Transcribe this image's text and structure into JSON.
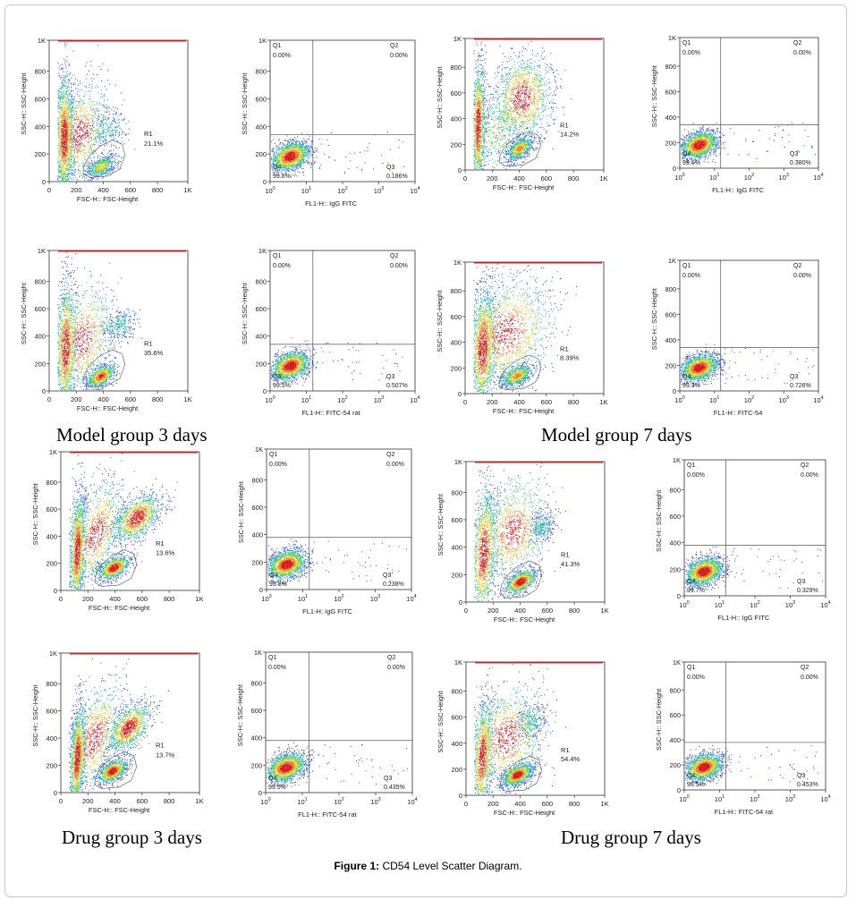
{
  "figure": {
    "caption_label": "Figure 1:",
    "caption_text": " CD54 Level Scatter Diagram.",
    "group_labels": [
      "Model group 3 days",
      "Model group 7 days",
      "Drug group 3 days",
      "Drug group 7 days"
    ]
  },
  "chart_data": [
    {
      "type": "scatter",
      "panel": "model-3d-fsc-ssc",
      "xlabel": "FSC-H:: FSC-Height",
      "ylabel": "SSC-H:: SSC-Height",
      "xticks": [
        "0",
        "200",
        "400",
        "600",
        "800",
        "1K"
      ],
      "yticks": [
        "0",
        "200",
        "400",
        "600",
        "800",
        "1K"
      ],
      "xlim": [
        0,
        1024
      ],
      "ylim": [
        0,
        1024
      ],
      "gate": {
        "name": "R1",
        "percent": "21.1%"
      }
    },
    {
      "type": "scatter",
      "panel": "model-3d-igg",
      "xscale": "log",
      "xlabel": "FL1-H:: IgG FITC",
      "ylabel": "SSC-H:: SSC-Height",
      "xticks": [
        "10",
        "10",
        "10",
        "10",
        "10"
      ],
      "xtick_exponents": [
        "0",
        "1",
        "2",
        "3",
        "4"
      ],
      "yticks": [
        "0",
        "200",
        "400",
        "600",
        "800",
        "1K"
      ],
      "quadrants": [
        {
          "name": "Q1",
          "percent": "0.00%"
        },
        {
          "name": "Q2",
          "percent": "0.00%"
        },
        {
          "name": "Q3",
          "percent": "0.186%"
        },
        {
          "name": "Q4",
          "percent": "99.8%"
        }
      ]
    },
    {
      "type": "scatter",
      "panel": "model-7d-fsc-ssc",
      "xlabel": "FSC-H:: FSC-Height",
      "ylabel": "SSC-H:: SSC-Height",
      "xticks": [
        "0",
        "200",
        "400",
        "600",
        "800",
        "1K"
      ],
      "yticks": [
        "0",
        "200",
        "400",
        "600",
        "800",
        "1K"
      ],
      "xlim": [
        0,
        1024
      ],
      "ylim": [
        0,
        1024
      ],
      "gate": {
        "name": "R1",
        "percent": "14.2%"
      }
    },
    {
      "type": "scatter",
      "panel": "model-7d-igg",
      "xscale": "log",
      "xlabel": "FL1-H:: IgG FITC",
      "ylabel": "SSC-H:: SSC-Height",
      "xticks": [
        "10",
        "10",
        "10",
        "10",
        "10"
      ],
      "xtick_exponents": [
        "0",
        "1",
        "2",
        "3",
        "4"
      ],
      "yticks": [
        "0",
        "200",
        "400",
        "600",
        "800",
        "1K"
      ],
      "quadrants": [
        {
          "name": "Q1",
          "percent": "0.00%"
        },
        {
          "name": "Q2",
          "percent": "0.00%"
        },
        {
          "name": "Q3",
          "percent": "0.380%"
        },
        {
          "name": "Q4",
          "percent": "99.6%"
        }
      ]
    },
    {
      "type": "scatter",
      "panel": "model-3d-fsc-ssc-b",
      "xlabel": "FSC-H:: FSC-Height",
      "ylabel": "SSC-H:: SSC-Height",
      "xticks": [
        "0",
        "200",
        "400",
        "600",
        "800",
        "1K"
      ],
      "yticks": [
        "0",
        "200",
        "400",
        "600",
        "800",
        "1K"
      ],
      "xlim": [
        0,
        1024
      ],
      "ylim": [
        0,
        1024
      ],
      "gate": {
        "name": "R1",
        "percent": "35.6%"
      }
    },
    {
      "type": "scatter",
      "panel": "model-3d-cd54",
      "xscale": "log",
      "xlabel": "FL1-H:: FITC-54 rat",
      "ylabel": "SSC-H:: SSC-Height",
      "xticks": [
        "10",
        "10",
        "10",
        "10",
        "10"
      ],
      "xtick_exponents": [
        "0",
        "1",
        "2",
        "3",
        "4"
      ],
      "yticks": [
        "0",
        "200",
        "400",
        "600",
        "800",
        "1K"
      ],
      "quadrants": [
        {
          "name": "Q1",
          "percent": "0.00%"
        },
        {
          "name": "Q2",
          "percent": "0.00%"
        },
        {
          "name": "Q3",
          "percent": "0.507%"
        },
        {
          "name": "Q4",
          "percent": "99.5%"
        }
      ]
    },
    {
      "type": "scatter",
      "panel": "model-7d-fsc-ssc-b",
      "xlabel": "FSC-H:: FSC-Height",
      "ylabel": "SSC-H:: SSC-Height",
      "xticks": [
        "0",
        "200",
        "400",
        "600",
        "800",
        "1K"
      ],
      "yticks": [
        "0",
        "200",
        "400",
        "600",
        "800",
        "1K"
      ],
      "xlim": [
        0,
        1024
      ],
      "ylim": [
        0,
        1024
      ],
      "gate": {
        "name": "R1",
        "percent": "8.39%"
      }
    },
    {
      "type": "scatter",
      "panel": "model-7d-cd54",
      "xscale": "log",
      "xlabel": "FL1-H:: FITC-54",
      "ylabel": "SSC-H:: SSC-Height",
      "xticks": [
        "10",
        "10",
        "10",
        "10",
        "10"
      ],
      "xtick_exponents": [
        "0",
        "1",
        "2",
        "3",
        "4"
      ],
      "yticks": [
        "0",
        "200",
        "400",
        "600",
        "800",
        "1K"
      ],
      "quadrants": [
        {
          "name": "Q1",
          "percent": "0.00%"
        },
        {
          "name": "Q2",
          "percent": "0.00%"
        },
        {
          "name": "Q3",
          "percent": "0.726%"
        },
        {
          "name": "Q4",
          "percent": "99.3%"
        }
      ]
    },
    {
      "type": "scatter",
      "panel": "drug-3d-fsc-ssc",
      "xlabel": "FSC-H:: FSC-Height",
      "ylabel": "SSC-H:: SSC-Height",
      "xticks": [
        "0",
        "200",
        "400",
        "600",
        "800",
        "1K"
      ],
      "yticks": [
        "0",
        "200",
        "400",
        "600",
        "800",
        "1K"
      ],
      "xlim": [
        0,
        1024
      ],
      "ylim": [
        0,
        1024
      ],
      "gate": {
        "name": "R1",
        "percent": "13.6%"
      }
    },
    {
      "type": "scatter",
      "panel": "drug-3d-igg",
      "xscale": "log",
      "xlabel": "FL1-H: IgG FITC",
      "ylabel": "SSC-H:: SSC-Height",
      "xticks": [
        "10",
        "10",
        "10",
        "10",
        "10"
      ],
      "xtick_exponents": [
        "0",
        "1",
        "2",
        "3",
        "4"
      ],
      "yticks": [
        "0",
        "200",
        "400",
        "600",
        "800",
        "1K"
      ],
      "quadrants": [
        {
          "name": "Q1",
          "percent": "0.00%"
        },
        {
          "name": "Q2",
          "percent": "0.00%"
        },
        {
          "name": "Q3",
          "percent": "0.238%"
        },
        {
          "name": "Q4",
          "percent": "99.8%"
        }
      ]
    },
    {
      "type": "scatter",
      "panel": "drug-7d-fsc-ssc",
      "xlabel": "FSC-H:: FSC-Height",
      "ylabel": "SSC-H:: SSC-Height",
      "xticks": [
        "0",
        "200",
        "400",
        "600",
        "800",
        "1K"
      ],
      "yticks": [
        "0",
        "200",
        "400",
        "600",
        "800",
        "1K"
      ],
      "xlim": [
        0,
        1024
      ],
      "ylim": [
        0,
        1024
      ],
      "gate": {
        "name": "R1",
        "percent": "41.3%"
      }
    },
    {
      "type": "scatter",
      "panel": "drug-7d-igg",
      "xscale": "log",
      "xlabel": "FL1-H:: IgG FITC",
      "ylabel": "SSC-H:: SSC-Height",
      "xticks": [
        "10",
        "10",
        "10",
        "10",
        "10"
      ],
      "xtick_exponents": [
        "0",
        "1",
        "2",
        "3",
        "4"
      ],
      "yticks": [
        "0",
        "200",
        "400",
        "600",
        "800",
        "1K"
      ],
      "quadrants": [
        {
          "name": "Q1",
          "percent": "0.00%"
        },
        {
          "name": "Q2",
          "percent": "0.00%"
        },
        {
          "name": "Q3",
          "percent": "0.329%"
        },
        {
          "name": "Q4",
          "percent": "99.7%"
        }
      ]
    },
    {
      "type": "scatter",
      "panel": "drug-3d-fsc-ssc-b",
      "xlabel": "FSC-H:: FSC-Height",
      "ylabel": "SSC-H:: SSC-Height",
      "xticks": [
        "0",
        "200",
        "400",
        "600",
        "800",
        "1K"
      ],
      "yticks": [
        "0",
        "200",
        "400",
        "600",
        "800",
        "1K"
      ],
      "xlim": [
        0,
        1024
      ],
      "ylim": [
        0,
        1024
      ],
      "gate": {
        "name": "R1",
        "percent": "13.7%"
      }
    },
    {
      "type": "scatter",
      "panel": "drug-3d-cd54",
      "xscale": "log",
      "xlabel": "FL1-H:: FITC-54 rat",
      "ylabel": "SSC-H:: SSC-Height",
      "xticks": [
        "10",
        "10",
        "10",
        "10",
        "10"
      ],
      "xtick_exponents": [
        "0",
        "1",
        "2",
        "3",
        "4"
      ],
      "yticks": [
        "0",
        "200",
        "400",
        "600",
        "800",
        "1K"
      ],
      "quadrants": [
        {
          "name": "Q1",
          "percent": "0.00%"
        },
        {
          "name": "Q2",
          "percent": "0.00%"
        },
        {
          "name": "Q3",
          "percent": "0.435%"
        },
        {
          "name": "Q4",
          "percent": "99.5%"
        }
      ]
    },
    {
      "type": "scatter",
      "panel": "drug-7d-fsc-ssc-b",
      "xlabel": "FSC-H:: FSC-Height",
      "ylabel": "SSC-H:: SSC-Height",
      "xticks": [
        "0",
        "200",
        "400",
        "600",
        "800",
        "1K"
      ],
      "yticks": [
        "0",
        "200",
        "400",
        "600",
        "800",
        "1K"
      ],
      "xlim": [
        0,
        1024
      ],
      "ylim": [
        0,
        1024
      ],
      "gate": {
        "name": "R1",
        "percent": "54.4%"
      }
    },
    {
      "type": "scatter",
      "panel": "drug-7d-cd54",
      "xscale": "log",
      "xlabel": "FL1-H:: FITC-54 rat",
      "ylabel": "SSC-H:: SSC-Height",
      "xticks": [
        "10",
        "10",
        "10",
        "10",
        "10"
      ],
      "xtick_exponents": [
        "0",
        "1",
        "2",
        "3",
        "4"
      ],
      "yticks": [
        "0",
        "200",
        "400",
        "600",
        "800",
        "1K"
      ],
      "quadrants": [
        {
          "name": "Q1",
          "percent": "0.00%"
        },
        {
          "name": "Q2",
          "percent": "0.00%"
        },
        {
          "name": "Q3",
          "percent": "0.453%"
        },
        {
          "name": "Q4",
          "percent": "99.5%"
        }
      ]
    }
  ]
}
